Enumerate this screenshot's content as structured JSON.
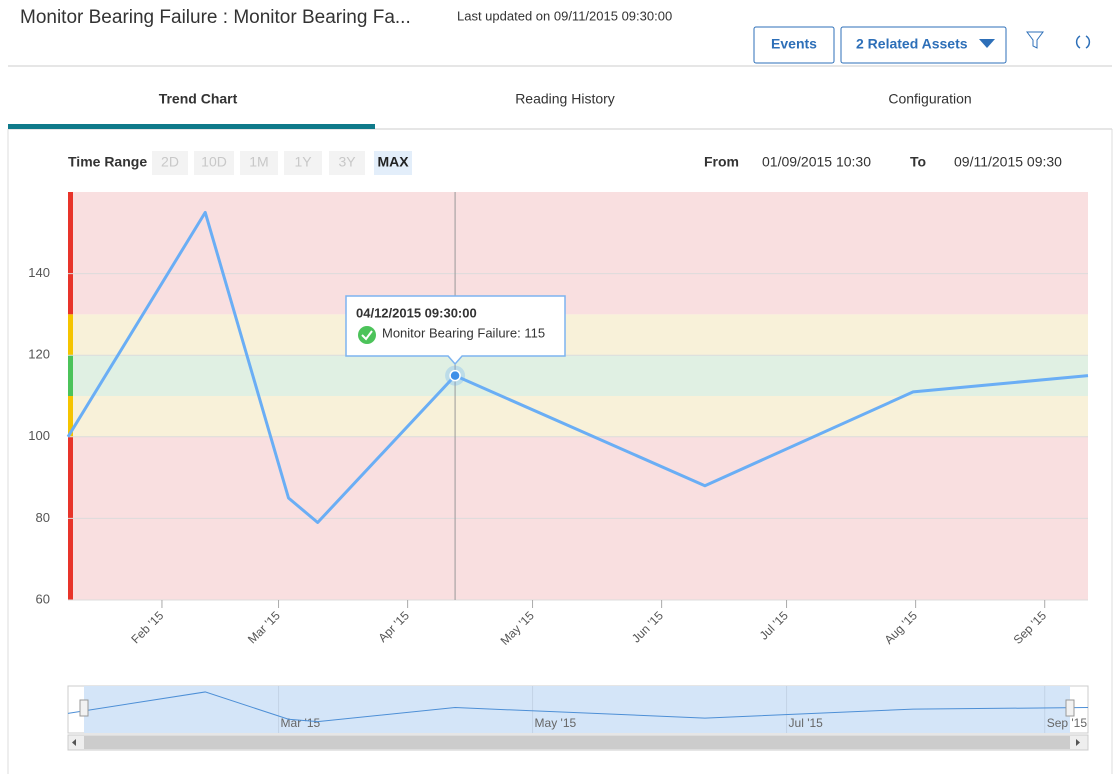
{
  "header": {
    "title": "Monitor Bearing Failure : Monitor Bearing Fa...",
    "last_updated": "Last updated on 09/11/2015 09:30:00",
    "events": "Events",
    "related": "2 Related Assets"
  },
  "tabs": [
    "Trend Chart",
    "Reading History",
    "Configuration"
  ],
  "time_range": {
    "label": "Time Range",
    "options": [
      "2D",
      "10D",
      "1M",
      "1Y",
      "3Y",
      "MAX"
    ],
    "from_label": "From",
    "from": "01/09/2015 10:30",
    "to_label": "To",
    "to": "09/11/2015 09:30"
  },
  "chart_data": {
    "type": "line",
    "x": [
      "2015-01-09T10:30",
      "2015-02-11T09:30",
      "2015-03-03T09:30",
      "2015-03-10T09:30",
      "2015-04-12T09:30",
      "2015-06-11T09:30",
      "2015-07-31T09:30",
      "2015-09-11T09:30"
    ],
    "series": [
      {
        "name": "Monitor Bearing Failure",
        "color": "#6aaef5",
        "values": [
          100,
          155,
          85,
          79,
          115,
          88,
          111,
          115
        ]
      }
    ],
    "xlim": [
      "2015-01-09T10:30",
      "2015-09-11T09:30"
    ],
    "xticks": [
      {
        "value": "2015-02-01",
        "label": "Feb '15"
      },
      {
        "value": "2015-03-01",
        "label": "Mar '15"
      },
      {
        "value": "2015-04-01",
        "label": "Apr '15"
      },
      {
        "value": "2015-05-01",
        "label": "May '15"
      },
      {
        "value": "2015-06-01",
        "label": "Jun '15"
      },
      {
        "value": "2015-07-01",
        "label": "Jul '15"
      },
      {
        "value": "2015-08-01",
        "label": "Aug '15"
      },
      {
        "value": "2015-09-01",
        "label": "Sep '15"
      }
    ],
    "ylim": [
      60,
      160
    ],
    "yticks": [
      60,
      80,
      100,
      120,
      140
    ],
    "grid": true,
    "bands": [
      {
        "from": 130,
        "to": 160,
        "color": "#f9dfe0",
        "strip": "#e8342a"
      },
      {
        "from": 120,
        "to": 130,
        "color": "#f8f1d9",
        "strip": "#f5c400"
      },
      {
        "from": 110,
        "to": 120,
        "color": "#e0f0e3",
        "strip": "#4cc35a"
      },
      {
        "from": 100,
        "to": 110,
        "color": "#f8f1d9",
        "strip": "#f5c400"
      },
      {
        "from": 60,
        "to": 100,
        "color": "#f9dfe0",
        "strip": "#e8342a"
      }
    ],
    "tooltip": {
      "date": "04/12/2015 09:30:00",
      "text": "Monitor Bearing Failure: 115",
      "index": 4
    },
    "navigator_ticks": [
      1,
      3,
      5,
      7
    ]
  }
}
